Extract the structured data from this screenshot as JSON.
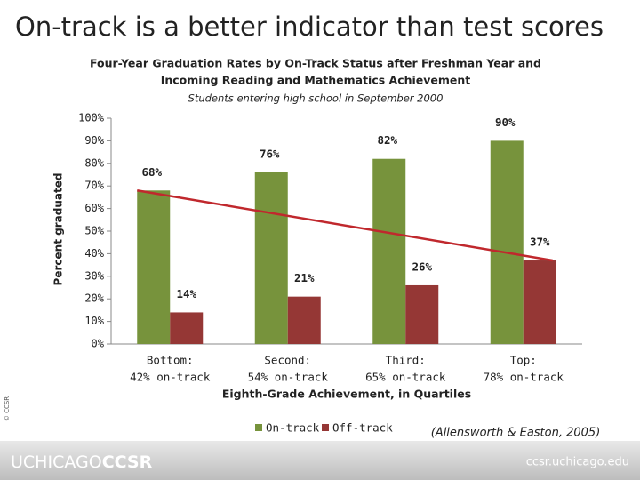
{
  "chart_data": {
    "type": "bar",
    "title": "On-track is a better indicator than test scores",
    "subtitle": [
      "Four-Year Graduation Rates by On-Track Status after Freshman Year and",
      "Incoming Reading and Mathematics Achievement"
    ],
    "note": "Students entering high school in September 2000",
    "ylabel": "Percent graduated",
    "xlabel": "Eighth-Grade Achievement, in Quartiles",
    "categories": [
      [
        "Bottom:",
        "42% on-track"
      ],
      [
        "Second:",
        "54% on-track"
      ],
      [
        "Third:",
        "65% on-track"
      ],
      [
        "Top:",
        "78% on-track"
      ]
    ],
    "series": [
      {
        "name": "On-track",
        "color": "#77933c",
        "values": [
          68,
          76,
          82,
          90
        ],
        "value_labels": [
          "68%",
          "76%",
          "82%",
          "90%"
        ]
      },
      {
        "name": "Off-track",
        "color": "#953735",
        "values": [
          14,
          21,
          26,
          37
        ],
        "value_labels": [
          "14%",
          "21%",
          "26%",
          "37%"
        ]
      }
    ],
    "line_color": "#c0282d",
    "ylim": [
      0,
      100
    ],
    "yticks": [
      {
        "value": 0,
        "label": "0%"
      },
      {
        "value": 10,
        "label": "10%"
      },
      {
        "value": 20,
        "label": "20%"
      },
      {
        "value": 30,
        "label": "30%"
      },
      {
        "value": 40,
        "label": "40%"
      },
      {
        "value": 50,
        "label": "50%"
      },
      {
        "value": 60,
        "label": "60%"
      },
      {
        "value": 70,
        "label": "70%"
      },
      {
        "value": 80,
        "label": "80%"
      },
      {
        "value": 90,
        "label": "90%"
      },
      {
        "value": 100,
        "label": "100%"
      }
    ],
    "citation": "(Allensworth & Easton, 2005)",
    "copyright": "© CCSR",
    "footer_logo": [
      "UCHICAGO",
      "CCSR"
    ],
    "footer_url": "ccsr.uchicago.edu"
  }
}
